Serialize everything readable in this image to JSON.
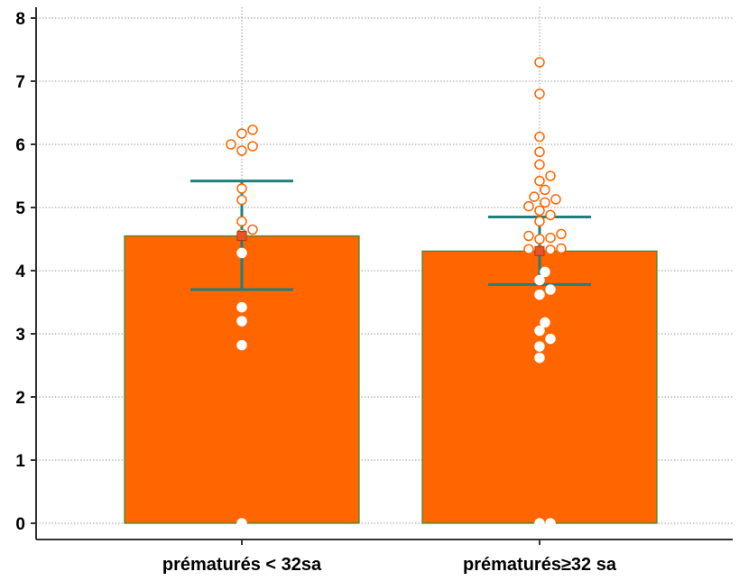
{
  "chart_data": {
    "type": "bar",
    "title": "",
    "xlabel": "",
    "ylabel": "",
    "ylim": [
      0,
      8
    ],
    "yticks": [
      0,
      1,
      2,
      3,
      4,
      5,
      6,
      7,
      8
    ],
    "categories": [
      "prématurés < 32sa",
      "prématurés≥32 sa"
    ],
    "values": [
      4.55,
      4.31
    ],
    "error_bars": [
      {
        "low": 3.7,
        "high": 5.42
      },
      {
        "low": 3.78,
        "high": 4.85
      }
    ],
    "grid": true,
    "points": [
      {
        "open": [
          6.23,
          6.17,
          6.0,
          5.97,
          5.9,
          5.3,
          5.12,
          4.78,
          4.65,
          4.58
        ],
        "filled": [
          4.28,
          3.42,
          3.2,
          2.82,
          0.0
        ]
      },
      {
        "open": [
          7.3,
          6.8,
          6.12,
          5.88,
          5.68,
          5.5,
          5.42,
          5.28,
          5.17,
          5.13,
          5.08,
          5.02,
          4.95,
          4.88,
          4.78,
          4.58,
          4.55,
          4.52,
          4.5,
          4.35,
          4.34,
          4.33,
          4.32
        ],
        "filled": [
          3.98,
          3.85,
          3.7,
          3.62,
          3.18,
          3.05,
          2.92,
          2.8,
          2.62,
          0.0,
          0.0
        ]
      }
    ],
    "colors": {
      "bar_fill": "#ff6600",
      "bar_edge": "#2e8b2e",
      "error_bar": "#1f7f7f",
      "point_open_stroke": "#ff6600",
      "point_filled": "#ffffff",
      "mean_marker": "#e8542a",
      "grid": "#999999",
      "axis": "#333333"
    }
  }
}
